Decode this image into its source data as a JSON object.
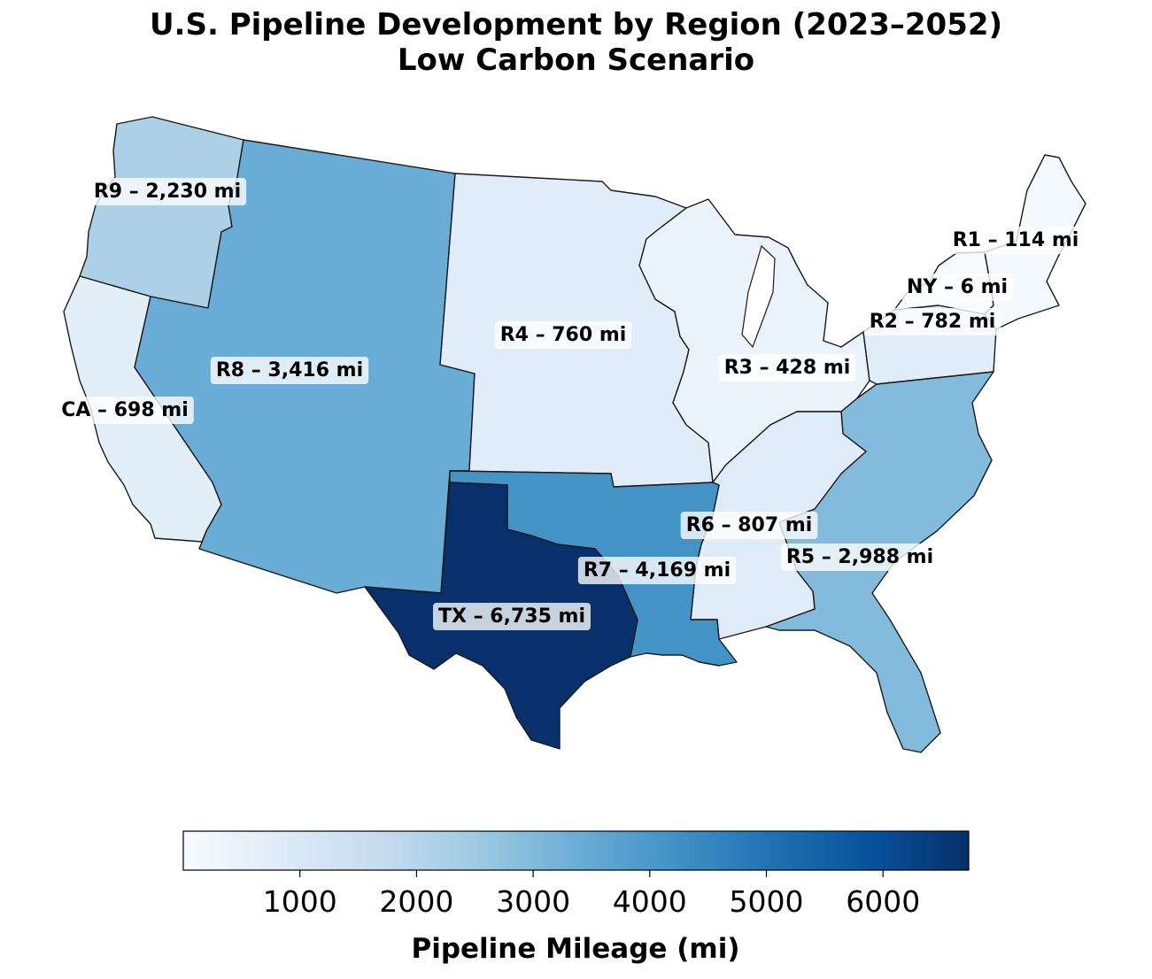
{
  "title_line1": "U.S. Pipeline Development by Region (2023–2052)",
  "title_line2": "Low Carbon Scenario",
  "colormap": [
    "#f7fbff",
    "#deebf7",
    "#c6dbef",
    "#9ecae1",
    "#6baed6",
    "#4292c6",
    "#2171b5",
    "#08519c",
    "#08306b"
  ],
  "regions": [
    {
      "id": "R1",
      "label": "R1 – 114 mi",
      "miles": 114
    },
    {
      "id": "NY",
      "label": "NY – 6 mi",
      "miles": 6
    },
    {
      "id": "R2",
      "label": "R2 – 782 mi",
      "miles": 782
    },
    {
      "id": "R3",
      "label": "R3 – 428 mi",
      "miles": 428
    },
    {
      "id": "R4",
      "label": "R4 – 760 mi",
      "miles": 760
    },
    {
      "id": "R5",
      "label": "R5 – 2,988 mi",
      "miles": 2988
    },
    {
      "id": "R6",
      "label": "R6 – 807 mi",
      "miles": 807
    },
    {
      "id": "R7",
      "label": "R7 – 4,169 mi",
      "miles": 4169
    },
    {
      "id": "R8",
      "label": "R8 – 3,416 mi",
      "miles": 3416
    },
    {
      "id": "R9",
      "label": "R9 – 2,230 mi",
      "miles": 2230
    },
    {
      "id": "CA",
      "label": "CA – 698 mi",
      "miles": 698
    },
    {
      "id": "TX",
      "label": "TX – 6,735 mi",
      "miles": 6735
    }
  ],
  "colorbar": {
    "min": 0,
    "max": 6735,
    "ticks": [
      1000,
      2000,
      3000,
      4000,
      5000,
      6000
    ],
    "label": "Pipeline Mileage (mi)"
  }
}
